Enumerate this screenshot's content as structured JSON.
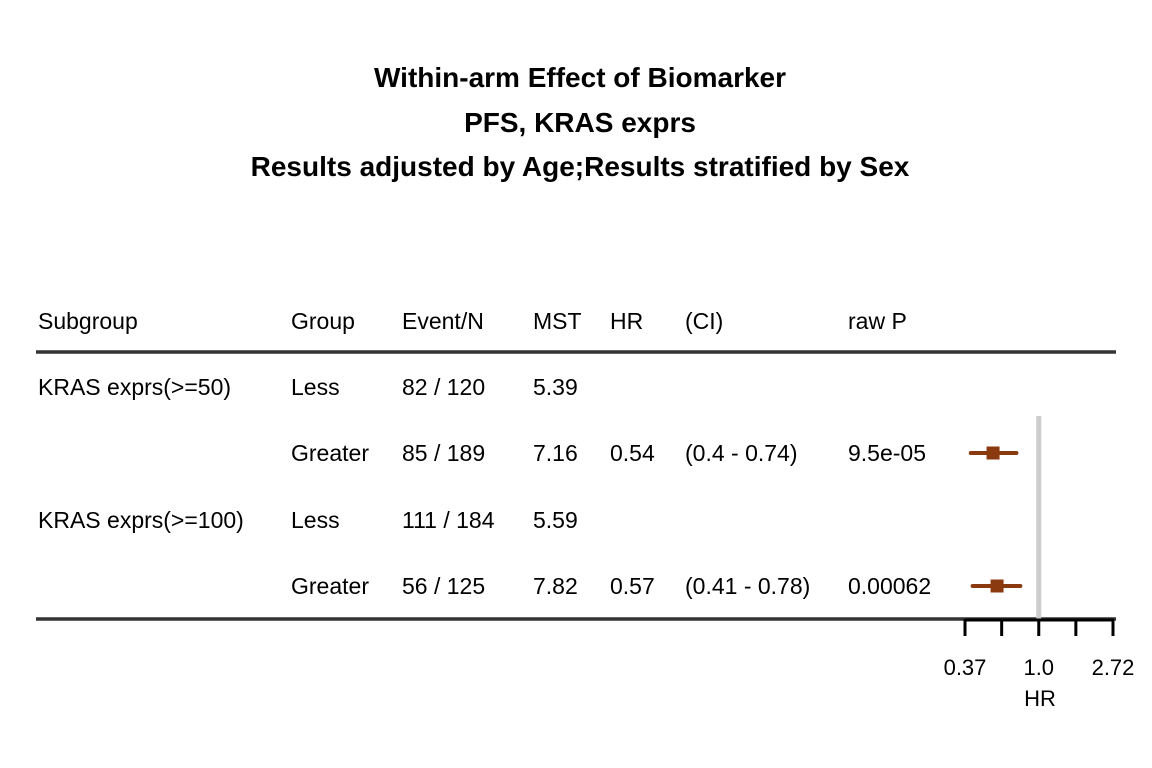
{
  "chart_data": {
    "type": "forest",
    "title_lines": [
      "Within-arm Effect of Biomarker",
      "PFS, KRAS exprs",
      "Results adjusted by Age;Results stratified by Sex"
    ],
    "columns": [
      "Subgroup",
      "Group",
      "Event/N",
      "MST",
      "HR",
      "(CI)",
      "raw P"
    ],
    "rows": [
      {
        "subgroup": "KRAS exprs(>=50)",
        "group": "Less",
        "event_n": "82 / 120",
        "mst": "5.39",
        "hr": "",
        "ci": "",
        "p": ""
      },
      {
        "subgroup": "",
        "group": "Greater",
        "event_n": "85 / 189",
        "mst": "7.16",
        "hr": "0.54",
        "ci": "(0.4 - 0.74)",
        "p": "9.5e-05"
      },
      {
        "subgroup": "KRAS exprs(>=100)",
        "group": "Less",
        "event_n": "111 / 184",
        "mst": "5.59",
        "hr": "",
        "ci": "",
        "p": ""
      },
      {
        "subgroup": "",
        "group": "Greater",
        "event_n": "56 / 125",
        "mst": "7.82",
        "hr": "0.57",
        "ci": "(0.41 - 0.78)",
        "p": "0.00062"
      }
    ],
    "estimates": [
      {
        "row": 1,
        "hr": 0.54,
        "lo": 0.4,
        "hi": 0.74
      },
      {
        "row": 3,
        "hr": 0.57,
        "lo": 0.41,
        "hi": 0.78
      }
    ],
    "x_scale": "log",
    "x_ticks": [
      0.37,
      0.6065,
      1.0,
      1.6487,
      2.72
    ],
    "x_tick_labels": [
      "0.37",
      "",
      "1.0",
      "",
      "2.72"
    ],
    "xlim": [
      0.37,
      2.72
    ],
    "reference_line": 1.0,
    "xlabel": "HR",
    "point_color": "#8B3A0F",
    "ref_line_color": "#cccccc"
  }
}
